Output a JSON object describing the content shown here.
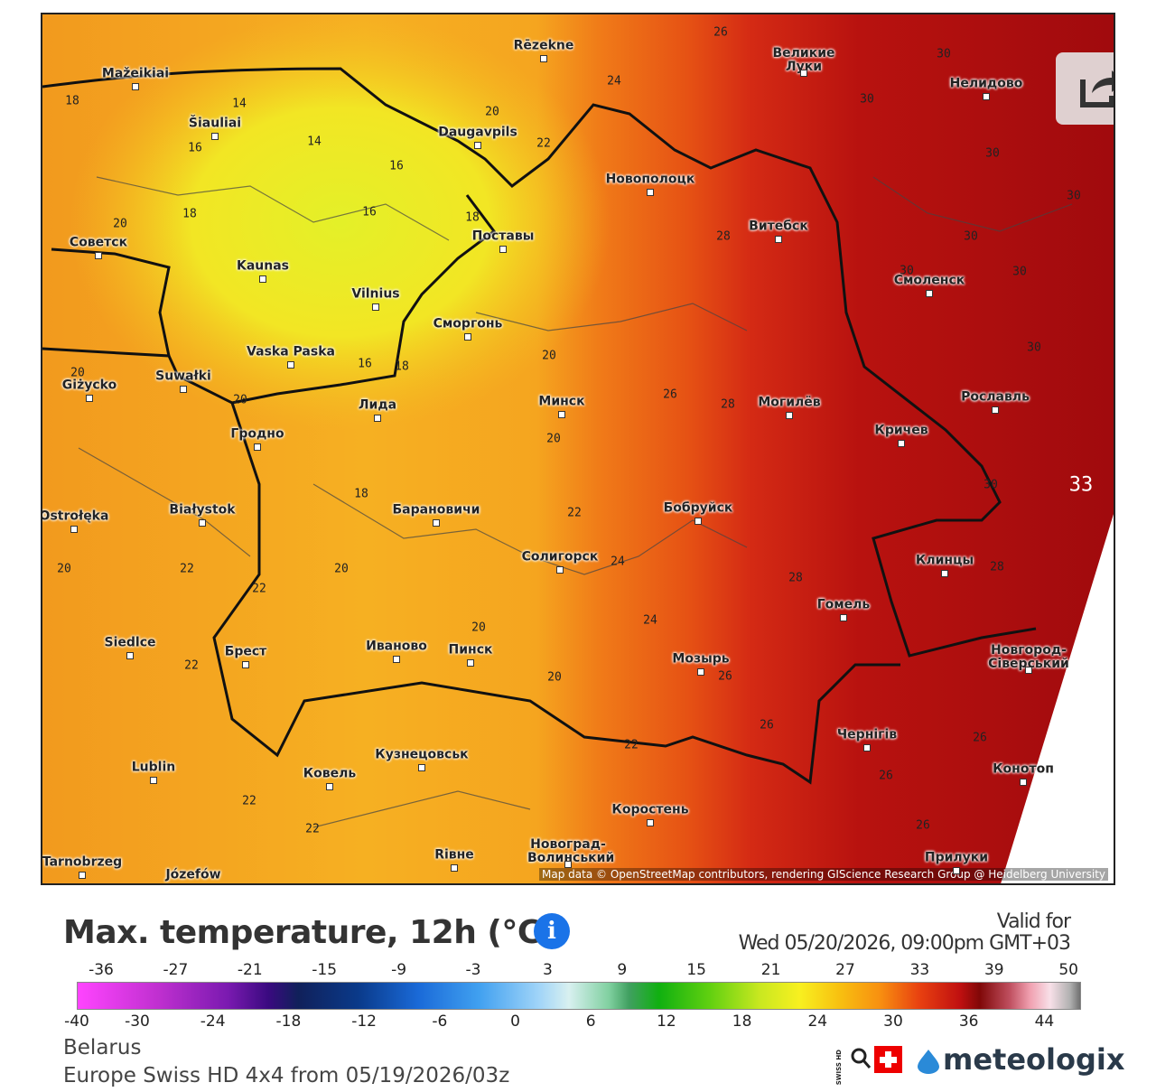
{
  "map": {
    "cities": [
      "Rēzekne",
      "Mažeikiai",
      "Великие Луки",
      "Нелидово",
      "Šiauliai",
      "Daugavpils",
      "Новополоцк",
      "Витебск",
      "Советск",
      "Поставы",
      "Kaunas",
      "Vilnius",
      "Смоленск",
      "Сморгонь",
      "Vaska Paska",
      "Suwałki",
      "Giżycko",
      "Минск",
      "Могилёв",
      "Рославль",
      "Лида",
      "Гродно",
      "Кричев",
      "Białystok",
      "Барановичи",
      "Бобруйск",
      "Ostrołęka",
      "Солигорск",
      "Клинцы",
      "Гомель",
      "Siedlce",
      "Брест",
      "Иваново",
      "Пинск",
      "Мозырь",
      "Новгород-Сіверський",
      "Чернігів",
      "Кузнецовськ",
      "Lublin",
      "Ковель",
      "Конотоп",
      "Коростень",
      "Новоград-Волинський",
      "Rівне",
      "Прилуки",
      "Tarnobrzeg",
      "Józefów"
    ],
    "isotherm_labels": [
      26,
      24,
      30,
      30,
      18,
      14,
      20,
      16,
      14,
      22,
      16,
      30,
      30,
      20,
      18,
      16,
      18,
      28,
      30,
      30,
      30,
      20,
      16,
      18,
      30,
      20,
      26,
      28,
      20,
      20,
      30,
      33,
      18,
      22,
      20,
      22,
      24,
      22,
      20,
      28,
      28,
      20,
      24,
      22,
      26,
      20,
      26,
      22,
      26,
      26,
      22,
      22,
      26
    ],
    "attribution": "Map data © OpenStreetMap contributors, rendering GIScience Research Group @ Heidelberg University"
  },
  "legend": {
    "title": "Max. temperature, 12h (°C)",
    "valid_label": "Valid for",
    "valid_time": "Wed 05/20/2026, 09:00pm GMT+03",
    "scale_top": [
      -36,
      -27,
      -21,
      -15,
      -9,
      -3,
      3,
      9,
      15,
      21,
      27,
      33,
      39,
      50
    ],
    "scale_bottom": [
      -40,
      -30,
      -24,
      -18,
      -12,
      -6,
      0,
      6,
      12,
      18,
      24,
      30,
      36,
      44
    ]
  },
  "footer": {
    "region": "Belarus",
    "model": "Europe Swiss HD 4x4 from 05/19/2026/03z",
    "badge": "SWISS HD",
    "brand": "meteologix"
  }
}
